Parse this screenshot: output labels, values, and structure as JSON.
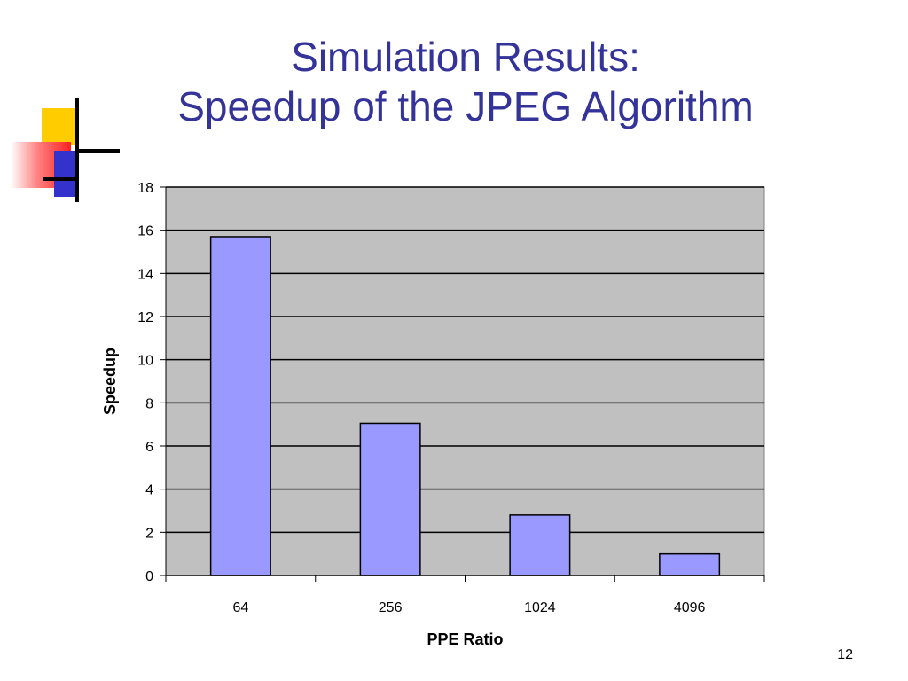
{
  "slide": {
    "title_line1": "Simulation Results:",
    "title_line2": "Speedup of the JPEG Algorithm",
    "page_number": "12"
  },
  "colors": {
    "title": "#333399",
    "plot_area": "#c0c0c0",
    "bar_fill": "#9999ff",
    "bar_stroke": "#000000",
    "deco_yellow": "#ffcc00",
    "deco_red": "#ff2020",
    "deco_blue": "#3333cc"
  },
  "chart_data": {
    "type": "bar",
    "categories": [
      "64",
      "256",
      "1024",
      "4096"
    ],
    "values": [
      15.7,
      7.05,
      2.8,
      1.0
    ],
    "xlabel": "PPE Ratio",
    "ylabel": "Speedup",
    "ylim": [
      0,
      18
    ],
    "yticks": [
      "0",
      "2",
      "4",
      "6",
      "8",
      "10",
      "12",
      "14",
      "16",
      "18"
    ],
    "grid": true,
    "legend": "none"
  }
}
